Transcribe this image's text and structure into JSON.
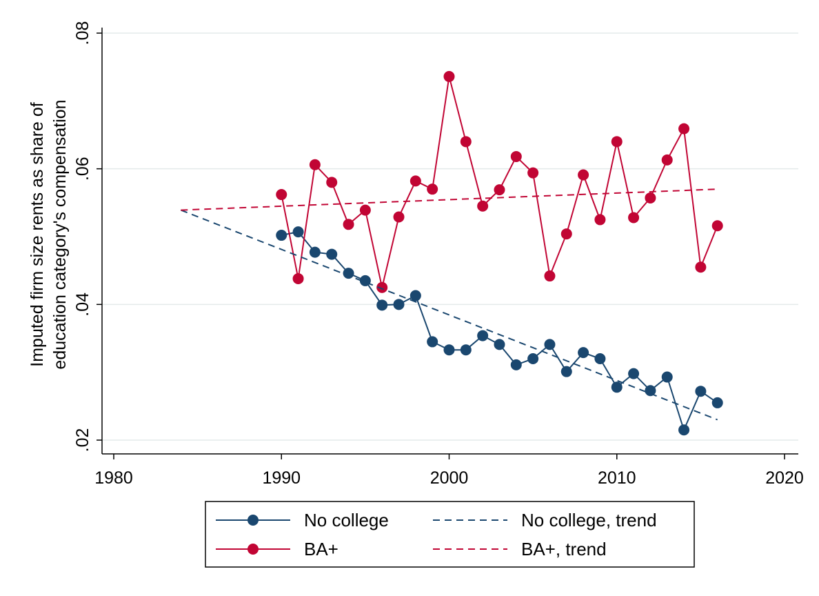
{
  "chart_data": {
    "type": "line",
    "title": "",
    "xlabel": "",
    "ylabel_lines": [
      "Imputed firm size rents as share of",
      "education category's compensation"
    ],
    "xlim": [
      1980,
      2020
    ],
    "ylim": [
      0.02,
      0.08
    ],
    "xticks": [
      1980,
      1990,
      2000,
      2010,
      2020
    ],
    "yticks": [
      0.02,
      0.04,
      0.06,
      0.08
    ],
    "ytick_labels": [
      ".02",
      ".04",
      ".06",
      ".08"
    ],
    "grid": "horizontal",
    "legend_position": "bottom",
    "series": [
      {
        "name": "No college",
        "color": "#1a476f",
        "style": "solid-markers",
        "x": [
          1990,
          1991,
          1992,
          1993,
          1994,
          1995,
          1996,
          1997,
          1998,
          1999,
          2000,
          2001,
          2002,
          2003,
          2004,
          2005,
          2006,
          2007,
          2008,
          2009,
          2010,
          2011,
          2012,
          2013,
          2014,
          2015,
          2016
        ],
        "y": [
          0.0502,
          0.0507,
          0.0477,
          0.0474,
          0.0446,
          0.0435,
          0.0399,
          0.04,
          0.0413,
          0.0345,
          0.0333,
          0.0333,
          0.0354,
          0.0341,
          0.0311,
          0.032,
          0.0341,
          0.0301,
          0.0329,
          0.032,
          0.0278,
          0.0298,
          0.0273,
          0.0293,
          0.0215,
          0.0272,
          0.0255
        ]
      },
      {
        "name": "BA+",
        "color": "#c10534",
        "style": "solid-markers",
        "x": [
          1990,
          1991,
          1992,
          1993,
          1994,
          1995,
          1996,
          1997,
          1998,
          1999,
          2000,
          2001,
          2002,
          2003,
          2004,
          2005,
          2006,
          2007,
          2008,
          2009,
          2010,
          2011,
          2012,
          2013,
          2014,
          2015,
          2016
        ],
        "y": [
          0.0562,
          0.0438,
          0.0606,
          0.058,
          0.0518,
          0.0539,
          0.0425,
          0.0529,
          0.0582,
          0.057,
          0.0736,
          0.064,
          0.0545,
          0.0569,
          0.0618,
          0.0594,
          0.0442,
          0.0504,
          0.0591,
          0.0525,
          0.064,
          0.0528,
          0.0557,
          0.0613,
          0.0659,
          0.0455,
          0.0516
        ]
      },
      {
        "name": "No college, trend",
        "color": "#1a476f",
        "style": "dashed",
        "x": [
          1984,
          2016
        ],
        "y": [
          0.0539,
          0.023
        ]
      },
      {
        "name": "BA+, trend",
        "color": "#c10534",
        "style": "dashed",
        "x": [
          1984,
          2016
        ],
        "y": [
          0.0539,
          0.057
        ]
      }
    ]
  }
}
